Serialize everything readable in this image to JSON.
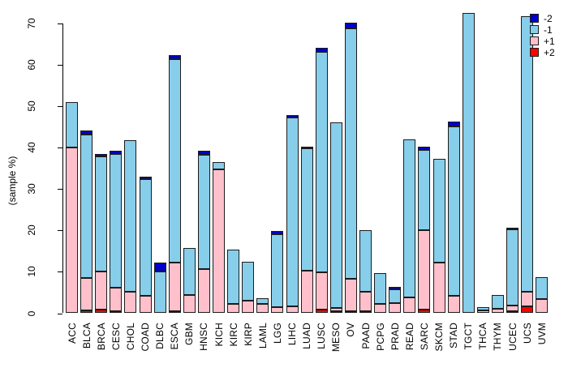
{
  "chart_data": {
    "type": "bar",
    "stacked": true,
    "title": "",
    "xlabel": "",
    "ylabel": "(sample %)",
    "ylim": [
      0,
      70
    ],
    "yticks": [
      0,
      10,
      20,
      30,
      40,
      50,
      60,
      70
    ],
    "grid": false,
    "legend_position": "top-right",
    "legend": [
      {
        "label": "-2",
        "color": "#0000CD"
      },
      {
        "label": "-1",
        "color": "#87CEEB"
      },
      {
        "label": "+1",
        "color": "#FFC0CB"
      },
      {
        "label": "+2",
        "color": "#FF0000"
      }
    ],
    "stack_order_bottom_to_top": [
      "+2",
      "+1",
      "-1",
      "-2"
    ],
    "categories": [
      "ACC",
      "BLCA",
      "BRCA",
      "CESC",
      "CHOL",
      "COAD",
      "DLBC",
      "ESCA",
      "GBM",
      "HNSC",
      "KICH",
      "KIRC",
      "KIRP",
      "LAML",
      "LGG",
      "LIHC",
      "LUAD",
      "LUSC",
      "MESO",
      "OV",
      "PAAD",
      "PCPG",
      "PRAD",
      "READ",
      "SARC",
      "SKCM",
      "STAD",
      "TGCT",
      "THCA",
      "THYM",
      "UCEC",
      "UCS",
      "UVM"
    ],
    "series": [
      {
        "name": "+2",
        "color": "#FF0000",
        "values": [
          0,
          0.7,
          0.8,
          0.2,
          0,
          0,
          0,
          0.5,
          0,
          0,
          0,
          0,
          0,
          0,
          0,
          0,
          0,
          0.8,
          0.3,
          0.5,
          0.5,
          0,
          0,
          0,
          0.8,
          0,
          0,
          0,
          0,
          0,
          0.4,
          1.6,
          0
        ]
      },
      {
        "name": "+1",
        "color": "#FFC0CB",
        "values": [
          40,
          7.8,
          9.2,
          5.7,
          5.2,
          4.3,
          0,
          11.7,
          4.4,
          10.6,
          34.8,
          2.2,
          3.1,
          2.3,
          1.5,
          1.6,
          10.3,
          9.0,
          0.9,
          7.9,
          4.6,
          2.3,
          2.4,
          3.9,
          19.3,
          12.3,
          4.2,
          0,
          0.7,
          1.0,
          1.5,
          3.6,
          3.5
        ]
      },
      {
        "name": "-1",
        "color": "#87CEEB",
        "values": [
          11,
          34.6,
          27.8,
          32.5,
          36.5,
          28.0,
          10.0,
          49.2,
          11.4,
          27.7,
          1.7,
          13.2,
          9.3,
          1.3,
          17.6,
          45.6,
          29.5,
          53.4,
          44.9,
          60.4,
          14.9,
          7.4,
          3.4,
          38.0,
          19.3,
          24.9,
          40.9,
          72.6,
          0.8,
          3.5,
          18.3,
          66.5,
          5.2
        ]
      },
      {
        "name": "-2",
        "color": "#0000CD",
        "values": [
          0,
          1.0,
          0.6,
          0.8,
          0,
          0.7,
          2.3,
          0.9,
          0,
          0.9,
          0,
          0,
          0,
          0,
          0.8,
          0.6,
          0.5,
          0.8,
          0,
          1.3,
          0,
          0,
          0.5,
          0,
          0.9,
          0,
          1.1,
          0,
          0,
          0,
          0.5,
          0,
          0
        ]
      }
    ]
  }
}
